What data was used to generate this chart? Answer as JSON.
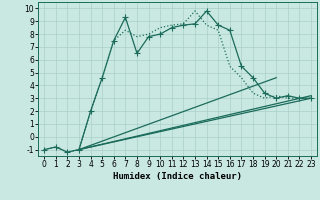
{
  "xlabel": "Humidex (Indice chaleur)",
  "xlim": [
    -0.5,
    23.5
  ],
  "ylim": [
    -1.5,
    10.5
  ],
  "xticks": [
    0,
    1,
    2,
    3,
    4,
    5,
    6,
    7,
    8,
    9,
    10,
    11,
    12,
    13,
    14,
    15,
    16,
    17,
    18,
    19,
    20,
    21,
    22,
    23
  ],
  "yticks": [
    -1,
    0,
    1,
    2,
    3,
    4,
    5,
    6,
    7,
    8,
    9,
    10
  ],
  "background_color": "#c9e8e2",
  "grid_color": "#aacfca",
  "line_color": "#1a6b5a",
  "line1_x": [
    0,
    1,
    2,
    3,
    4,
    5,
    6,
    7,
    8,
    9,
    10,
    11,
    12,
    13,
    14,
    15,
    16,
    17,
    18,
    19,
    20,
    21,
    22,
    23
  ],
  "line1_y": [
    -1,
    -0.8,
    -1.2,
    -1.0,
    2.0,
    4.6,
    7.5,
    9.3,
    6.5,
    7.8,
    8.0,
    8.5,
    8.7,
    8.8,
    9.8,
    8.7,
    8.3,
    5.5,
    4.6,
    3.4,
    3.0,
    3.2,
    3.0,
    3.0
  ],
  "dotted_x": [
    0,
    1,
    2,
    3,
    4,
    5,
    6,
    7,
    8,
    9,
    10,
    11,
    12,
    13,
    14,
    15,
    16,
    17,
    18,
    19,
    20,
    21,
    22,
    23
  ],
  "dotted_y": [
    -1,
    -0.8,
    -1.2,
    -1.0,
    2.0,
    4.6,
    7.5,
    8.3,
    7.8,
    8.0,
    8.5,
    8.7,
    8.8,
    9.8,
    8.7,
    8.3,
    5.5,
    4.6,
    3.4,
    3.0,
    3.2,
    3.0,
    3.0,
    3.0
  ],
  "fan_lines": [
    {
      "x": [
        3,
        23
      ],
      "y": [
        -1.0,
        3.2
      ]
    },
    {
      "x": [
        3,
        20
      ],
      "y": [
        -1.0,
        4.6
      ]
    },
    {
      "x": [
        3,
        23
      ],
      "y": [
        -1.0,
        3.0
      ]
    }
  ],
  "marker": "+",
  "markersize": 4,
  "markeredgewidth": 0.8,
  "linewidth": 0.9
}
